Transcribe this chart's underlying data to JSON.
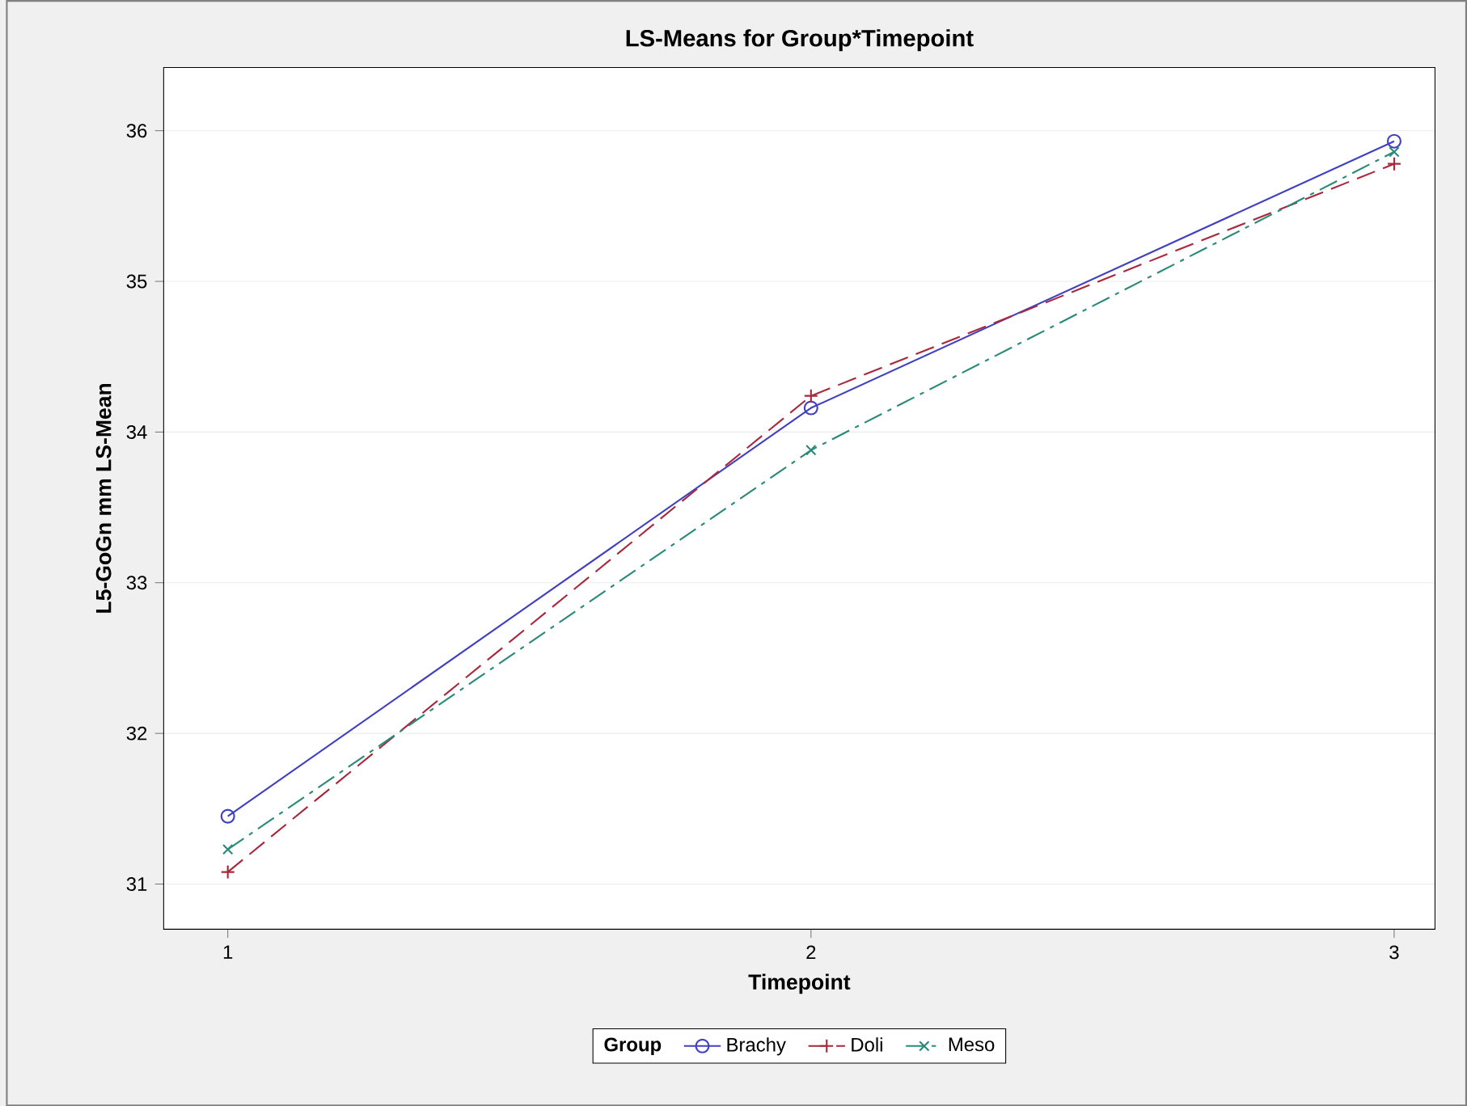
{
  "chart_data": {
    "type": "line",
    "title": "LS-Means for Group*Timepoint",
    "xlabel": "Timepoint",
    "ylabel": "L5-GoGn mm LS-Mean",
    "legend_title": "Group",
    "x": [
      1,
      2,
      3
    ],
    "series": [
      {
        "name": "Brachy",
        "color": "#4040c0",
        "values": [
          31.45,
          34.16,
          35.93
        ],
        "marker": "circle",
        "line_style": "solid"
      },
      {
        "name": "Doli",
        "color": "#a8283c",
        "values": [
          31.08,
          34.24,
          35.78
        ],
        "marker": "cross",
        "line_style": "dashed"
      },
      {
        "name": "Meso",
        "color": "#2a8a7a",
        "values": [
          31.23,
          33.88,
          35.86
        ],
        "marker": "x",
        "line_style": "dashdot"
      }
    ],
    "xlim": [
      0.89,
      3.07
    ],
    "ylim": [
      30.7,
      36.42
    ],
    "xticks": [
      1,
      2,
      3
    ],
    "yticks": [
      31,
      32,
      33,
      34,
      35,
      36
    ],
    "grid": "y",
    "legend": "bottom"
  }
}
